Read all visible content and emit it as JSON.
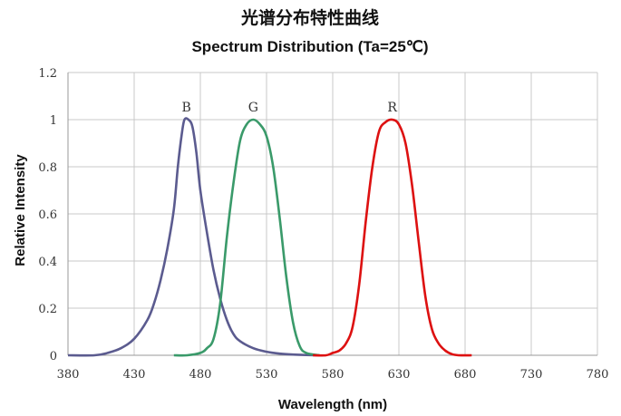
{
  "chart_data": {
    "type": "line",
    "title": "光谱分布特性曲线",
    "subtitle": "Spectrum Distribution  (Ta=25℃)",
    "xlabel": "Wavelength (nm)",
    "ylabel": "Relative Intensity",
    "xlim": [
      380,
      780
    ],
    "ylim": [
      0,
      1.2
    ],
    "x_ticks": [
      380,
      430,
      480,
      530,
      580,
      630,
      680,
      730,
      780
    ],
    "y_ticks": [
      "0",
      "0.2",
      "0.4",
      "0.6",
      "0.8",
      "1",
      "1.2"
    ],
    "grid": true,
    "series": [
      {
        "name": "B",
        "color": "#5b5b8f",
        "x": [
          380,
          400,
          410,
          420,
          430,
          440,
          445,
          450,
          455,
          460,
          463,
          466,
          468,
          471,
          474,
          477,
          480,
          485,
          490,
          495,
          500,
          505,
          510,
          520,
          530,
          540,
          550,
          560,
          570
        ],
        "y": [
          0,
          0,
          0.01,
          0.03,
          0.07,
          0.15,
          0.22,
          0.32,
          0.45,
          0.62,
          0.8,
          0.94,
          1.0,
          1.0,
          0.97,
          0.86,
          0.7,
          0.52,
          0.36,
          0.24,
          0.15,
          0.09,
          0.06,
          0.03,
          0.015,
          0.007,
          0.003,
          0.001,
          0
        ]
      },
      {
        "name": "G",
        "color": "#3a9a6a",
        "x": [
          460,
          470,
          480,
          485,
          490,
          495,
          500,
          505,
          510,
          515,
          520,
          525,
          530,
          535,
          540,
          545,
          550,
          555,
          560,
          570
        ],
        "y": [
          0,
          0,
          0.01,
          0.03,
          0.07,
          0.22,
          0.5,
          0.73,
          0.91,
          0.98,
          1.0,
          0.98,
          0.93,
          0.8,
          0.58,
          0.33,
          0.14,
          0.04,
          0.01,
          0
        ]
      },
      {
        "name": "R",
        "color": "#dd1111",
        "x": [
          565,
          575,
          580,
          585,
          590,
          595,
          600,
          605,
          610,
          615,
          620,
          625,
          630,
          635,
          640,
          645,
          650,
          655,
          660,
          665,
          670,
          675,
          685
        ],
        "y": [
          0,
          0,
          0.01,
          0.02,
          0.05,
          0.12,
          0.3,
          0.57,
          0.8,
          0.95,
          0.99,
          1.0,
          0.98,
          0.9,
          0.72,
          0.48,
          0.25,
          0.11,
          0.05,
          0.02,
          0.005,
          0,
          0
        ]
      }
    ]
  }
}
